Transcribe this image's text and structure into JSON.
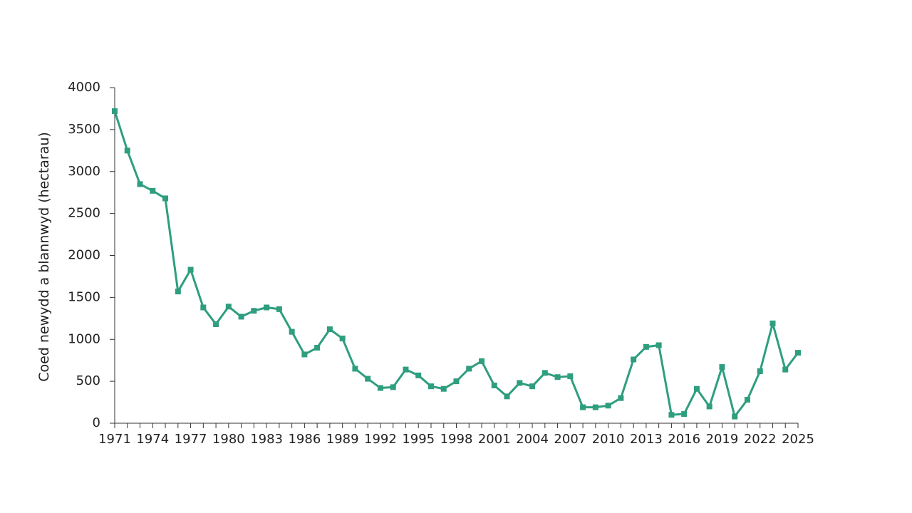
{
  "chart_data": {
    "type": "line",
    "title": "",
    "xlabel": "",
    "ylabel": "Coed newydd a blannwyd (hectarau)",
    "ylim": [
      0,
      4000
    ],
    "xlim": [
      1971,
      2025
    ],
    "yticks": [
      "0",
      "500",
      "1000",
      "1500",
      "2000",
      "2500",
      "3000",
      "3500",
      "4000"
    ],
    "xticks": [
      "1971",
      "1974",
      "1977",
      "1980",
      "1983",
      "1986",
      "1989",
      "1992",
      "1995",
      "1998",
      "2001",
      "2004",
      "2007",
      "2010",
      "2013",
      "2016",
      "2019",
      "2022",
      "2025"
    ],
    "grid": false,
    "legend": "none",
    "color": "#2e9e7f",
    "marker": "square",
    "series": [
      {
        "x": [
          1971,
          1972,
          1973,
          1974,
          1975,
          1976,
          1977,
          1978,
          1979,
          1980,
          1981,
          1982,
          1983,
          1984,
          1985,
          1986,
          1987,
          1988,
          1989,
          1990,
          1991,
          1992,
          1993,
          1994,
          1995,
          1996,
          1997,
          1998,
          1999,
          2000,
          2001,
          2002,
          2003,
          2004,
          2005,
          2006,
          2007,
          2008,
          2009,
          2010,
          2011,
          2012,
          2013,
          2014,
          2015,
          2016,
          2017,
          2018,
          2019,
          2020,
          2021,
          2022,
          2023,
          2024,
          2025
        ],
        "values": [
          3720,
          3250,
          2850,
          2770,
          2680,
          1570,
          1830,
          1380,
          1180,
          1390,
          1270,
          1340,
          1380,
          1360,
          1090,
          820,
          900,
          1120,
          1010,
          650,
          530,
          420,
          430,
          640,
          570,
          440,
          410,
          500,
          650,
          740,
          450,
          320,
          480,
          440,
          600,
          550,
          560,
          190,
          190,
          210,
          300,
          760,
          910,
          930,
          100,
          110,
          410,
          200,
          670,
          80,
          280,
          620,
          1190,
          640,
          840
        ]
      }
    ]
  }
}
